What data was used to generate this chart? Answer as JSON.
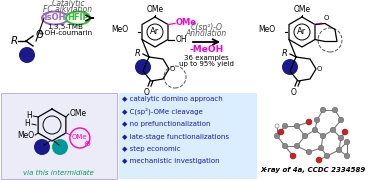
{
  "bg_color": "#ffffff",
  "top_left_text1": "Catalytic",
  "top_left_text2": "FC alkylation",
  "tsoh_label": "TsOH",
  "hfip_label": "HFIP",
  "reagents_line1": "1,3,5-TMB",
  "reagents_line2": "4-OH-coumarin",
  "arrow_label1": "C(sp²)-O",
  "arrow_label2": "Annulation",
  "methanol_label": "-MeOH",
  "yield_line1": "36 examples",
  "yield_line2": "up to 95% yield",
  "bullet_points": [
    "catalytic domino approach",
    "C(sp²)-OMe cleavage",
    "no prefunctionalization",
    "late-stage functionalizations",
    "step economic",
    "mechanistic investigation"
  ],
  "xray_label_italic": "X-ray of 4a, CCDC 2334589",
  "intermediate_label": "via this intermidiate",
  "ome_magenta": "#ff00cc",
  "tsoh_color": "#9966cc",
  "hfip_color": "#33bb33",
  "bullet_color": "#1a1aaa",
  "dark_blue": "#1a1a8a",
  "teal_color": "#009999",
  "lavender_bg": "#ececf8",
  "lightblue_bg": "#daeeff",
  "methanol_color": "#ff00cc",
  "bond_pink": "#ff66cc",
  "gray_atom": "#888888",
  "red_atom": "#cc2222"
}
